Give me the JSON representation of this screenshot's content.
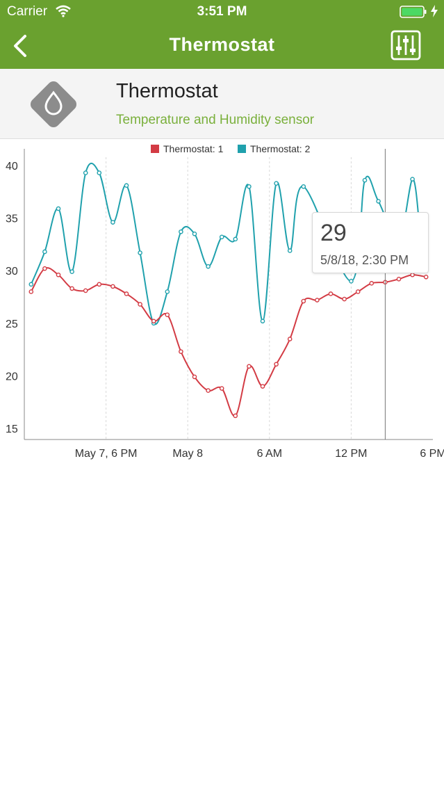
{
  "status_bar": {
    "carrier": "Carrier",
    "time": "3:51 PM",
    "icons": [
      "wifi-icon",
      "battery-icon",
      "charging-bolt-icon"
    ]
  },
  "nav": {
    "title": "Thermostat",
    "back_icon": "chevron-left-icon",
    "settings_icon": "sliders-icon"
  },
  "colors": {
    "brand": "#6aa12f",
    "subtitle": "#7ab03c",
    "series_1": "#d33b44",
    "series_2": "#20a1ad"
  },
  "device": {
    "name": "Thermostat",
    "description": "Temperature and Humidity sensor",
    "icon": "water-drop-icon"
  },
  "tooltip": {
    "value": "29",
    "date": "5/8/18, 2:30 PM"
  },
  "chart_data": {
    "type": "line",
    "legend_position": "top-center",
    "x_ticks": [
      {
        "x": 18,
        "label": "May 7, 6 PM"
      },
      {
        "x": 24,
        "label": "May 8"
      },
      {
        "x": 30,
        "label": "6 AM"
      },
      {
        "x": 36,
        "label": "12 PM"
      },
      {
        "x": 42,
        "label": "6 PM"
      }
    ],
    "xlim": [
      12,
      42
    ],
    "ylim": [
      14,
      41
    ],
    "y_ticks": [
      15,
      20,
      25,
      30,
      35,
      40
    ],
    "cursor_x": 38.5,
    "series": [
      {
        "name": "Thermostat: 1",
        "points": [
          [
            12.5,
            28
          ],
          [
            13.5,
            30.2
          ],
          [
            14.5,
            29.6
          ],
          [
            15.5,
            28.3
          ],
          [
            16.5,
            28.1
          ],
          [
            17.5,
            28.7
          ],
          [
            18.5,
            28.5
          ],
          [
            19.5,
            27.8
          ],
          [
            20.5,
            26.8
          ],
          [
            21.5,
            25.2
          ],
          [
            22.5,
            25.8
          ],
          [
            23.5,
            22.3
          ],
          [
            24.5,
            19.9
          ],
          [
            25.5,
            18.6
          ],
          [
            26.5,
            18.8
          ],
          [
            27.5,
            16.2
          ],
          [
            28.5,
            20.9
          ],
          [
            29.5,
            19
          ],
          [
            30.5,
            21.1
          ],
          [
            31.5,
            23.5
          ],
          [
            32.5,
            27.1
          ],
          [
            33.5,
            27.2
          ],
          [
            34.5,
            27.8
          ],
          [
            35.5,
            27.3
          ],
          [
            36.5,
            28
          ],
          [
            37.5,
            28.8
          ],
          [
            38.5,
            28.9
          ],
          [
            39.5,
            29.2
          ],
          [
            40.5,
            29.6
          ],
          [
            41.5,
            29.4
          ]
        ]
      },
      {
        "name": "Thermostat: 2",
        "points": [
          [
            12.5,
            28.7
          ],
          [
            13.5,
            31.8
          ],
          [
            14.5,
            35.9
          ],
          [
            15.5,
            29.9
          ],
          [
            16.5,
            39.3
          ],
          [
            17.5,
            39.3
          ],
          [
            18.5,
            34.6
          ],
          [
            19.5,
            38.1
          ],
          [
            20.5,
            31.7
          ],
          [
            21.5,
            25
          ],
          [
            22.5,
            28
          ],
          [
            23.5,
            33.7
          ],
          [
            24.5,
            33.5
          ],
          [
            25.5,
            30.4
          ],
          [
            26.5,
            33.2
          ],
          [
            27.5,
            33
          ],
          [
            28.5,
            38
          ],
          [
            29.5,
            25.2
          ],
          [
            30.5,
            38.3
          ],
          [
            31.5,
            31.9
          ],
          [
            32.5,
            38
          ],
          [
            36,
            29
          ],
          [
            37,
            38.6
          ],
          [
            38,
            36.6
          ],
          [
            39.5,
            33
          ],
          [
            40.5,
            38.7
          ],
          [
            41,
            34.5
          ]
        ]
      }
    ]
  }
}
